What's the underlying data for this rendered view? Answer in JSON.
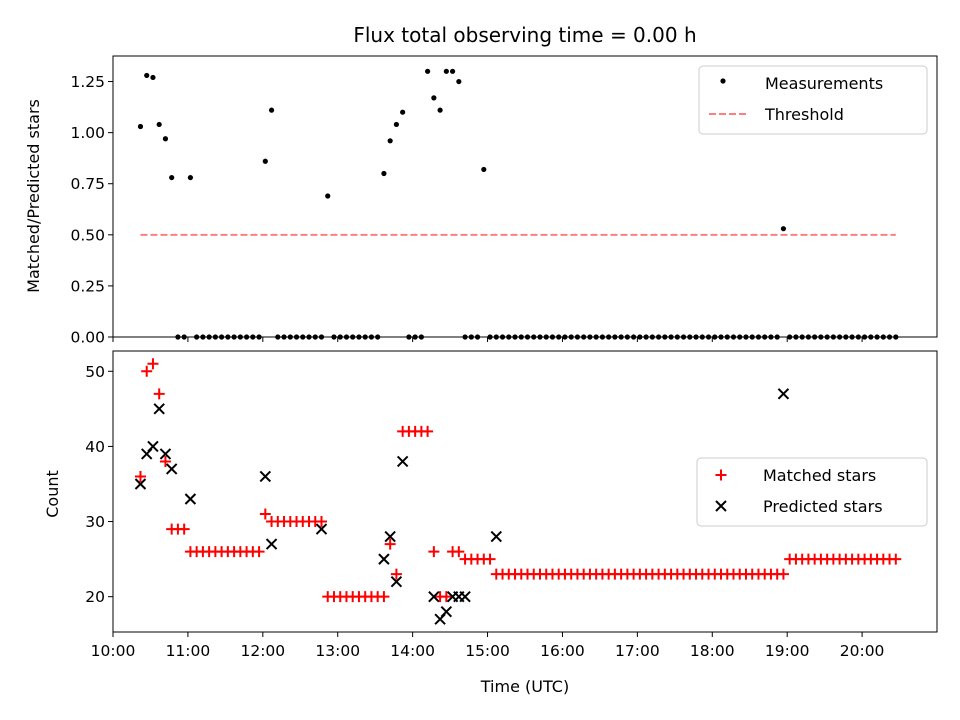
{
  "chart_data": [
    {
      "type": "scatter",
      "title": "Flux total observing time = 0.00 h",
      "xlabel": "",
      "ylabel": "Matched/Predicted stars",
      "xlim": [
        "10:00",
        "21:00"
      ],
      "ylim": [
        0,
        1.375
      ],
      "yticks": [
        "0.00",
        "0.25",
        "0.50",
        "0.75",
        "1.00",
        "1.25"
      ],
      "legend": "top-right",
      "grid": false,
      "series": [
        {
          "name": "Measurements",
          "kind": "points",
          "color": "#000000",
          "x": [
            "10:22",
            "10:27",
            "10:32",
            "10:37",
            "10:42",
            "10:47",
            "10:52",
            "10:57",
            "11:02",
            "11:07",
            "11:12",
            "11:17",
            "11:22",
            "11:27",
            "11:32",
            "11:37",
            "11:42",
            "11:47",
            "11:52",
            "11:57",
            "12:02",
            "12:07",
            "12:12",
            "12:17",
            "12:22",
            "12:27",
            "12:32",
            "12:37",
            "12:42",
            "12:47",
            "12:52",
            "12:57",
            "13:02",
            "13:07",
            "13:12",
            "13:17",
            "13:22",
            "13:27",
            "13:32",
            "13:37",
            "13:42",
            "13:47",
            "13:52",
            "13:57",
            "14:02",
            "14:07",
            "14:12",
            "14:17",
            "14:22",
            "14:27",
            "14:32",
            "14:37",
            "14:42",
            "14:47",
            "14:52",
            "14:57",
            "15:02",
            "15:07",
            "15:12",
            "15:17",
            "15:22",
            "15:27",
            "15:32",
            "15:37",
            "15:42",
            "15:47",
            "15:52",
            "15:57",
            "16:02",
            "16:07",
            "16:12",
            "16:17",
            "16:22",
            "16:27",
            "16:32",
            "16:37",
            "16:42",
            "16:47",
            "16:52",
            "16:57",
            "17:02",
            "17:07",
            "17:12",
            "17:17",
            "17:22",
            "17:27",
            "17:32",
            "17:37",
            "17:42",
            "17:47",
            "17:52",
            "17:57",
            "18:02",
            "18:07",
            "18:12",
            "18:17",
            "18:22",
            "18:27",
            "18:32",
            "18:37",
            "18:42",
            "18:47",
            "18:52",
            "18:57",
            "19:02",
            "19:07",
            "19:12",
            "19:17",
            "19:22",
            "19:27",
            "19:32",
            "19:37",
            "19:42",
            "19:47",
            "19:52",
            "19:57",
            "20:02",
            "20:07",
            "20:12",
            "20:17",
            "20:22",
            "20:27"
          ],
          "y": [
            1.03,
            1.28,
            1.27,
            1.04,
            0.97,
            0.78,
            0.0,
            0.0,
            0.78,
            0.0,
            0.0,
            0.0,
            0.0,
            0.0,
            0.0,
            0.0,
            0.0,
            0.0,
            0.0,
            0.0,
            0.86,
            1.11,
            0.0,
            0.0,
            0.0,
            0.0,
            0.0,
            0.0,
            0.0,
            0.0,
            0.69,
            0.0,
            0.0,
            0.0,
            0.0,
            0.0,
            0.0,
            0.0,
            0.0,
            0.8,
            0.96,
            1.04,
            1.1,
            0.0,
            0.0,
            0.0,
            1.3,
            1.17,
            1.11,
            1.3,
            1.3,
            1.25,
            0.0,
            0.0,
            0.0,
            0.82,
            0.0,
            0.0,
            0.0,
            0.0,
            0.0,
            0.0,
            0.0,
            0.0,
            0.0,
            0.0,
            0.0,
            0.0,
            0.0,
            0.0,
            0.0,
            0.0,
            0.0,
            0.0,
            0.0,
            0.0,
            0.0,
            0.0,
            0.0,
            0.0,
            0.0,
            0.0,
            0.0,
            0.0,
            0.0,
            0.0,
            0.0,
            0.0,
            0.0,
            0.0,
            0.0,
            0.0,
            0.0,
            0.0,
            0.0,
            0.0,
            0.0,
            0.0,
            0.0,
            0.0,
            0.0,
            0.0,
            0.0,
            0.53,
            0.0,
            0.0,
            0.0,
            0.0,
            0.0,
            0.0,
            0.0,
            0.0,
            0.0,
            0.0,
            0.0,
            0.0,
            0.0,
            0.0,
            0.0,
            0.0,
            0.0,
            0.0
          ]
        },
        {
          "name": "Threshold",
          "kind": "dashed-line",
          "color": "#ff7f7f",
          "x": [
            "10:22",
            "20:27"
          ],
          "y": [
            0.5,
            0.5
          ]
        }
      ]
    },
    {
      "type": "scatter",
      "title": "",
      "xlabel": "Time (UTC)",
      "ylabel": "Count",
      "xlim": [
        "10:00",
        "21:00"
      ],
      "ylim": [
        15.3,
        52.7
      ],
      "yticks": [
        "20",
        "30",
        "40",
        "50"
      ],
      "xticks": [
        "10:00",
        "11:00",
        "12:00",
        "13:00",
        "14:00",
        "15:00",
        "16:00",
        "17:00",
        "18:00",
        "19:00",
        "20:00"
      ],
      "legend": "center-right",
      "grid": false,
      "series": [
        {
          "name": "Matched stars",
          "marker": "plus",
          "color": "#ff0000",
          "x": [
            "10:22",
            "10:27",
            "10:32",
            "10:37",
            "10:42",
            "10:47",
            "10:52",
            "10:57",
            "11:02",
            "11:07",
            "11:12",
            "11:17",
            "11:22",
            "11:27",
            "11:32",
            "11:37",
            "11:42",
            "11:47",
            "11:52",
            "11:57",
            "12:02",
            "12:07",
            "12:12",
            "12:17",
            "12:22",
            "12:27",
            "12:32",
            "12:37",
            "12:42",
            "12:47",
            "12:52",
            "12:57",
            "13:02",
            "13:07",
            "13:12",
            "13:17",
            "13:22",
            "13:27",
            "13:32",
            "13:37",
            "13:42",
            "13:47",
            "13:52",
            "13:57",
            "14:02",
            "14:07",
            "14:12",
            "14:17",
            "14:22",
            "14:27",
            "14:32",
            "14:37",
            "14:42",
            "14:47",
            "14:52",
            "14:57",
            "15:02",
            "15:07",
            "15:12",
            "15:17",
            "15:22",
            "15:27",
            "15:32",
            "15:37",
            "15:42",
            "15:47",
            "15:52",
            "15:57",
            "16:02",
            "16:07",
            "16:12",
            "16:17",
            "16:22",
            "16:27",
            "16:32",
            "16:37",
            "16:42",
            "16:47",
            "16:52",
            "16:57",
            "17:02",
            "17:07",
            "17:12",
            "17:17",
            "17:22",
            "17:27",
            "17:32",
            "17:37",
            "17:42",
            "17:47",
            "17:52",
            "17:57",
            "18:02",
            "18:07",
            "18:12",
            "18:17",
            "18:22",
            "18:27",
            "18:32",
            "18:37",
            "18:42",
            "18:47",
            "18:52",
            "18:57",
            "19:02",
            "19:07",
            "19:12",
            "19:17",
            "19:22",
            "19:27",
            "19:32",
            "19:37",
            "19:42",
            "19:47",
            "19:52",
            "19:57",
            "20:02",
            "20:07",
            "20:12",
            "20:17",
            "20:22",
            "20:27"
          ],
          "y": [
            36,
            50,
            51,
            47,
            38,
            29,
            29,
            29,
            26,
            26,
            26,
            26,
            26,
            26,
            26,
            26,
            26,
            26,
            26,
            26,
            31,
            30,
            30,
            30,
            30,
            30,
            30,
            30,
            30,
            30,
            20,
            20,
            20,
            20,
            20,
            20,
            20,
            20,
            20,
            20,
            27,
            23,
            42,
            42,
            42,
            42,
            42,
            26,
            20,
            20,
            26,
            26,
            25,
            25,
            25,
            25,
            25,
            23,
            23,
            23,
            23,
            23,
            23,
            23,
            23,
            23,
            23,
            23,
            23,
            23,
            23,
            23,
            23,
            23,
            23,
            23,
            23,
            23,
            23,
            23,
            23,
            23,
            23,
            23,
            23,
            23,
            23,
            23,
            23,
            23,
            23,
            23,
            23,
            23,
            23,
            23,
            23,
            23,
            23,
            23,
            23,
            23,
            23,
            23,
            25,
            25,
            25,
            25,
            25,
            25,
            25,
            25,
            25,
            25,
            25,
            25,
            25,
            25,
            25,
            25,
            25,
            25
          ]
        },
        {
          "name": "Predicted stars",
          "marker": "x",
          "color": "#000000",
          "x": [
            "10:22",
            "10:27",
            "10:32",
            "10:37",
            "10:42",
            "10:47",
            "11:02",
            "12:02",
            "12:07",
            "12:47",
            "13:37",
            "13:42",
            "13:47",
            "13:52",
            "14:17",
            "14:22",
            "14:27",
            "14:32",
            "14:37",
            "14:42",
            "15:07",
            "18:57"
          ],
          "y": [
            35,
            39,
            40,
            45,
            39,
            37,
            33,
            36,
            27,
            29,
            25,
            28,
            22,
            38,
            20,
            17,
            18,
            20,
            20,
            20,
            28,
            47
          ]
        }
      ]
    }
  ]
}
